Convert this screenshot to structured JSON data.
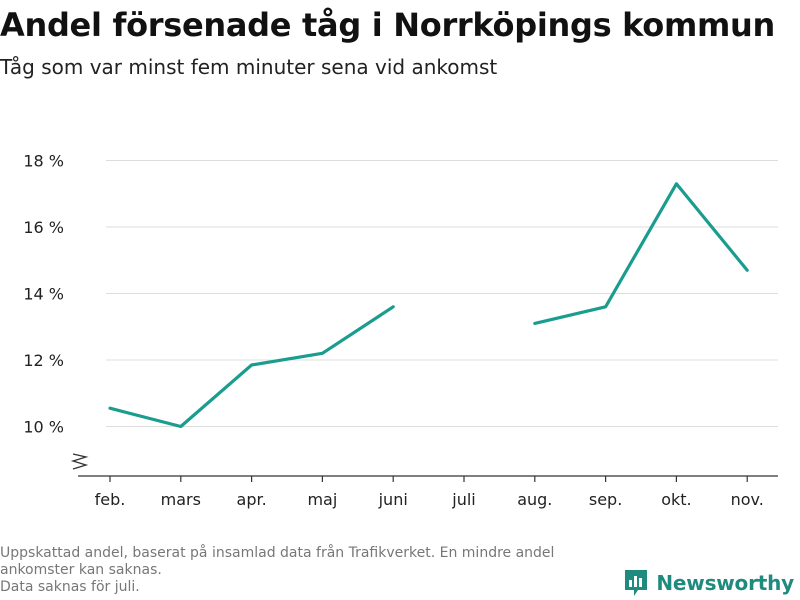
{
  "header": {
    "title": "Andel försenade tåg i Norrköpings kommun",
    "subtitle": "Tåg som var minst fem minuter sena vid ankomst"
  },
  "footnote": {
    "lines": [
      "Uppskattad andel, baserat på insamlad data från Trafikverket. En mindre andel",
      "ankomster kan saknas.",
      "Data saknas för juli."
    ]
  },
  "brand": {
    "name": "Newsworthy",
    "icon": "newsworthy-logo-icon"
  },
  "colors": {
    "line": "#1a9d8f",
    "grid": "#dddddd",
    "axis": "#333333",
    "brand": "#1f8a7e"
  },
  "chart_data": {
    "type": "line",
    "categories": [
      "feb.",
      "mars",
      "apr.",
      "maj",
      "juni",
      "juli",
      "aug.",
      "sep.",
      "okt.",
      "nov."
    ],
    "series": [
      {
        "values": [
          10.55,
          10.0,
          11.85,
          12.2,
          13.6,
          null,
          13.1,
          13.6,
          17.3,
          14.7
        ]
      }
    ],
    "ylim": [
      8.5,
      18.5
    ],
    "yticks": [
      10,
      12,
      14,
      16,
      18
    ],
    "ytick_labels": [
      "10 %",
      "12 %",
      "14 %",
      "16 %",
      "18 %"
    ],
    "y_axis_break": true,
    "grid": true,
    "xlabel": "",
    "ylabel": ""
  }
}
